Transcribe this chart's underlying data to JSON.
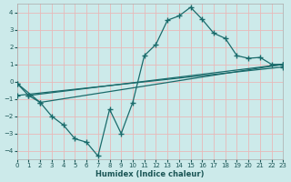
{
  "xlabel": "Humidex (Indice chaleur)",
  "background_color": "#cceaea",
  "grid_color": "#e8b8b8",
  "line_color": "#1a6b6b",
  "xlim": [
    0,
    23
  ],
  "ylim": [
    -4.5,
    4.5
  ],
  "yticks": [
    -4,
    -3,
    -2,
    -1,
    0,
    1,
    2,
    3,
    4
  ],
  "xticks": [
    0,
    1,
    2,
    3,
    4,
    5,
    6,
    7,
    8,
    9,
    10,
    11,
    12,
    13,
    14,
    15,
    16,
    17,
    18,
    19,
    20,
    21,
    22,
    23
  ],
  "curve1_x": [
    0,
    1,
    2,
    3,
    4,
    5,
    6,
    7,
    8,
    9,
    10,
    11,
    12,
    13,
    14,
    15,
    16,
    17,
    18,
    19,
    20,
    21,
    22,
    23
  ],
  "curve1_y": [
    -0.1,
    -0.8,
    -1.2,
    -2.0,
    -2.5,
    -3.3,
    -3.5,
    -4.3,
    -1.6,
    -3.0,
    -1.2,
    1.5,
    2.15,
    3.55,
    3.8,
    4.3,
    3.6,
    2.8,
    2.5,
    1.5,
    1.35,
    1.4,
    1.0,
    1.0
  ],
  "curve2_x": [
    0,
    2,
    23
  ],
  "curve2_y": [
    -0.1,
    -1.2,
    1.0
  ],
  "curve3_x": [
    0,
    23
  ],
  "curve3_y": [
    -0.8,
    0.85
  ],
  "curve4_x": [
    1,
    23
  ],
  "curve4_y": [
    -0.8,
    1.0
  ]
}
